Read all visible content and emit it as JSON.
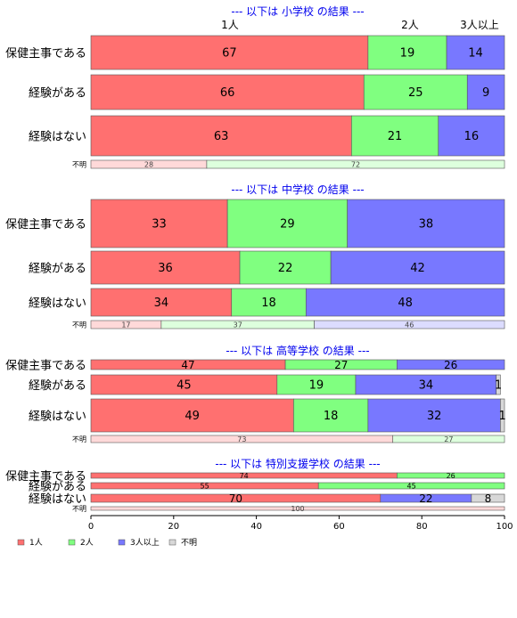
{
  "chart_data": {
    "type": "bar",
    "orientation": "horizontal",
    "stacked": true,
    "percent": true,
    "xlim": [
      0,
      100
    ],
    "x_ticks": [
      "0",
      "20",
      "40",
      "60",
      "80",
      "100"
    ],
    "legend_position": "bottom-left",
    "colors": {
      "1人": "#ff7070",
      "2人": "#80ff80",
      "3人以上": "#7878ff",
      "不明": "#d8d8d8"
    },
    "series_names": [
      "1人",
      "2人",
      "3人以上",
      "不明"
    ],
    "legend": [
      "1人",
      "2人",
      "3人以上",
      "不明"
    ],
    "column_labels": [
      "1人",
      "2人",
      "3人以上",
      "不明"
    ],
    "panels": [
      {
        "title": "--- 以下は 小学校 の結果 ---",
        "rows": [
          {
            "label": "保健主事である",
            "values": [
              67,
              19,
              14,
              0
            ]
          },
          {
            "label": "経験がある",
            "values": [
              66,
              25,
              9,
              0
            ]
          },
          {
            "label": "経験はない",
            "values": [
              63,
              21,
              16,
              0
            ]
          },
          {
            "label": "不明",
            "values": [
              28,
              72,
              0,
              0
            ]
          }
        ]
      },
      {
        "title": "--- 以下は 中学校 の結果 ---",
        "rows": [
          {
            "label": "保健主事である",
            "values": [
              33,
              29,
              38,
              0
            ]
          },
          {
            "label": "経験がある",
            "values": [
              36,
              22,
              42,
              0
            ]
          },
          {
            "label": "経験はない",
            "values": [
              34,
              18,
              48,
              0
            ]
          },
          {
            "label": "不明",
            "values": [
              17,
              37,
              46,
              0
            ]
          }
        ]
      },
      {
        "title": "--- 以下は 高等学校 の結果 ---",
        "rows": [
          {
            "label": "保健主事である",
            "values": [
              47,
              27,
              26,
              0
            ]
          },
          {
            "label": "経験がある",
            "values": [
              45,
              19,
              34,
              1
            ]
          },
          {
            "label": "経験はない",
            "values": [
              49,
              18,
              32,
              1
            ]
          },
          {
            "label": "不明",
            "values": [
              73,
              27,
              0,
              0
            ]
          }
        ]
      },
      {
        "title": "--- 以下は 特別支援学校 の結果 ---",
        "rows": [
          {
            "label": "保健主事である",
            "values": [
              74,
              26,
              0,
              0
            ]
          },
          {
            "label": "経験がある",
            "values": [
              55,
              45,
              0,
              0
            ]
          },
          {
            "label": "経験はない",
            "values": [
              70,
              0,
              22,
              8
            ]
          },
          {
            "label": "不明",
            "values": [
              100,
              0,
              0,
              0
            ]
          }
        ]
      }
    ]
  }
}
